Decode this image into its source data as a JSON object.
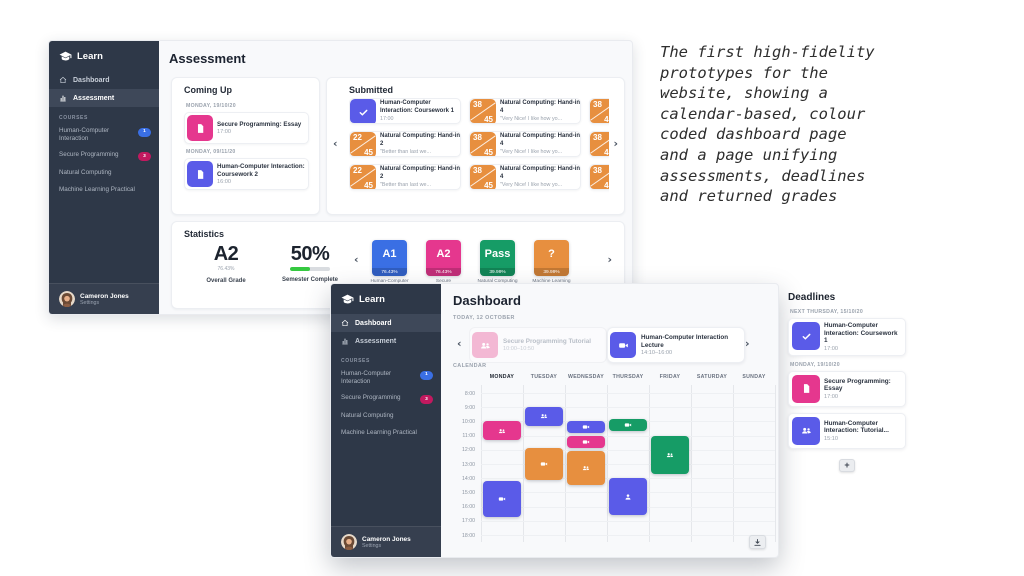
{
  "caption": {
    "text": "The first high-fidelity\nprototypes for the\nwebsite, showing a\ncalendar-based, colour\ncoded dashboard page\nand a page unifying\nassessments, deadlines\nand returned grades"
  },
  "colors": {
    "pink": "#E5378E",
    "purple": "#5A5BE8",
    "orange": "#E78F3F",
    "green": "#169C66",
    "blue": "#3A6FE4",
    "crimson": "#C2195F",
    "faded_pink": "#F3B8D4",
    "sidebar": "#2E3848",
    "sidebar_active": "#3E4859",
    "progress_green": "#35C940"
  },
  "icons": {
    "chevron_left": "‹",
    "chevron_right": "›",
    "add": "+"
  },
  "sidebar": {
    "logo_label": "Learn",
    "nav": [
      {
        "label": "Dashboard",
        "icon": "home"
      },
      {
        "label": "Assessment",
        "icon": "chart"
      }
    ],
    "courses_heading": "COURSES",
    "courses": [
      {
        "label": "Human-Computer Interaction",
        "badge": "1",
        "badge_color": "blue"
      },
      {
        "label": "Secure Programming",
        "badge": "3",
        "badge_color": "crimson"
      },
      {
        "label": "Natural Computing"
      },
      {
        "label": "Machine Learning Practical"
      }
    ],
    "user": {
      "name": "Cameron Jones",
      "settings_label": "Settings"
    }
  },
  "assessment_window": {
    "active_nav": "Assessment",
    "title": "Assessment",
    "coming_up": {
      "heading": "Coming Up",
      "groups": [
        {
          "date": "MONDAY, 19/10/20",
          "items": [
            {
              "icon": "doc",
              "color": "pink",
              "title": "Secure Programming: Essay",
              "time": "17:00"
            }
          ]
        },
        {
          "date": "MONDAY, 09/11/20",
          "items": [
            {
              "icon": "doc",
              "color": "purple",
              "title": "Human-Computer Interaction: Coursework 2",
              "time": "16:00"
            }
          ]
        }
      ]
    },
    "submitted": {
      "heading": "Submitted",
      "cards": [
        {
          "icon": "check",
          "color": "purple",
          "title": "Human-Computer Interaction: Coursework 1",
          "subtitle": "17:00"
        },
        {
          "grade": [
            "38",
            "45"
          ],
          "color": "orange",
          "title": "Natural Computing: Hand-in 4",
          "subtitle": "\"Very Nice! I like how yo..."
        },
        {
          "grade": [
            "38",
            "45"
          ],
          "color": "orange"
        },
        {
          "grade": [
            "22",
            "45"
          ],
          "color": "orange",
          "title": "Natural Computing: Hand-in 2",
          "subtitle": "\"Better than last we..."
        },
        {
          "grade": [
            "38",
            "45"
          ],
          "color": "orange",
          "title": "Natural Computing: Hand-in 4",
          "subtitle": "\"Very Nice! I like how yo..."
        },
        {
          "grade": [
            "38",
            "45"
          ],
          "color": "orange"
        },
        {
          "grade": [
            "22",
            "45"
          ],
          "color": "orange",
          "title": "Natural Computing: Hand-in 2",
          "subtitle": "\"Better than last we..."
        },
        {
          "grade": [
            "38",
            "45"
          ],
          "color": "orange",
          "title": "Natural Computing: Hand-in 4",
          "subtitle": "\"Very Nice! I like how yo..."
        },
        {
          "grade": [
            "38",
            "45"
          ],
          "color": "orange"
        }
      ]
    },
    "statistics": {
      "heading": "Statistics",
      "overall": {
        "value": "A2",
        "percent": "76.43%",
        "label": "Overall Grade"
      },
      "semester": {
        "value": "50%",
        "label": "Semester Complete",
        "progress": 50
      },
      "grades": [
        {
          "value": "A1",
          "percent": "76.43%",
          "label": "Human-Computer",
          "color": "blue"
        },
        {
          "value": "A2",
          "percent": "76.43%",
          "label": "Secure",
          "color": "pink"
        },
        {
          "value": "Pass",
          "percent": "39.99%",
          "label": "Natural Computing",
          "color": "green"
        },
        {
          "value": "?",
          "percent": "39.99%",
          "label": "Machine Learning",
          "color": "orange"
        }
      ]
    }
  },
  "dashboard_window": {
    "active_nav": "Dashboard",
    "title": "Dashboard",
    "today_label": "TODAY, 12 OCTOBER",
    "today_events": [
      {
        "title": "Secure Programming Tutorial",
        "time": "10:00–10:50",
        "icon": "people",
        "color": "pink",
        "faded": true
      },
      {
        "title": "Human-Computer Interaction Lecture",
        "time": "14:10–16:00",
        "icon": "camera",
        "color": "purple",
        "faded": false
      }
    ],
    "calendar": {
      "heading": "CALENDAR",
      "days": [
        "MONDAY",
        "TUESDAY",
        "WEDNESDAY",
        "THURSDAY",
        "FRIDAY",
        "SATURDAY",
        "SUNDAY"
      ],
      "active_day": "MONDAY",
      "hours": [
        "8:00",
        "9:00",
        "10:00",
        "11:00",
        "12:00",
        "13:00",
        "14:00",
        "15:00",
        "16:00",
        "17:00",
        "18:00"
      ],
      "events": [
        {
          "day": 0,
          "start": 10.0,
          "end": 11.3,
          "color": "pink",
          "icon": "people"
        },
        {
          "day": 0,
          "start": 14.2,
          "end": 16.7,
          "color": "purple",
          "icon": "camera"
        },
        {
          "day": 1,
          "start": 9.0,
          "end": 10.3,
          "color": "purple",
          "icon": "people"
        },
        {
          "day": 1,
          "start": 11.9,
          "end": 14.1,
          "color": "orange",
          "icon": "camera"
        },
        {
          "day": 2,
          "start": 10.0,
          "end": 10.8,
          "color": "purple",
          "icon": "camera"
        },
        {
          "day": 2,
          "start": 11.0,
          "end": 11.9,
          "color": "pink",
          "icon": "camera"
        },
        {
          "day": 2,
          "start": 12.1,
          "end": 14.5,
          "color": "orange",
          "icon": "people"
        },
        {
          "day": 3,
          "start": 9.8,
          "end": 10.7,
          "color": "green",
          "icon": "camera"
        },
        {
          "day": 3,
          "start": 14.0,
          "end": 16.6,
          "color": "purple",
          "icon": "person"
        },
        {
          "day": 4,
          "start": 11.0,
          "end": 13.7,
          "color": "green",
          "icon": "people"
        }
      ]
    }
  },
  "deadlines_panel": {
    "heading": "Deadlines",
    "groups": [
      {
        "date": "NEXT THURSDAY, 15/10/20",
        "items": [
          {
            "icon": "check",
            "color": "purple",
            "title": "Human-Computer Interaction: Coursework 1",
            "time": "17:00"
          }
        ]
      },
      {
        "date": "MONDAY, 19/10/20",
        "items": [
          {
            "icon": "doc",
            "color": "pink",
            "title": "Secure Programming: Essay",
            "time": "17:00"
          },
          {
            "icon": "people",
            "color": "purple",
            "title": "Human-Computer Interaction: Tutorial...",
            "time": "15:10"
          }
        ]
      }
    ]
  }
}
